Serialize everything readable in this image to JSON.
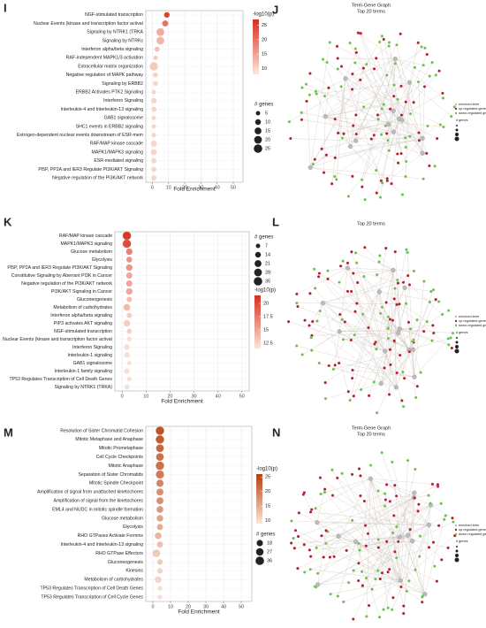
{
  "chart_data": [
    {
      "type": "dot",
      "label": "I",
      "categories": [
        "NGF-stimulated transcription",
        "Nuclear Events (kinase and transcription factor activat",
        "Signaling by NTRK1 (TRKA",
        "Signaling by NTRKs",
        "Interferon alpha/beta signaling",
        "RAF-independent MAPK1/3 activation",
        "Extracellular matrix organization",
        "Negative regulation of MAPK pathway",
        "Signaling by ERBB2",
        "ERBB2 Activates PTK2 Signaling",
        "Interferon Signaling",
        "Interleukin-4 and Interleukin-13 signaling",
        "GAB1 signalosome",
        "SHC1 events in ERBB2 signaling",
        "Estrogen-dependent nuclear events downstream of ESR-mem",
        "RAF/MAP kinase cascade",
        "MAPK1/MAPK3 signaling",
        "ESR-mediated signaling",
        "PI5P, PP2A and IER3 Regulate PI3K/AKT Signaling",
        "Negative regulation of the PI3K/AKT network"
      ],
      "values": [
        9,
        8,
        5,
        5,
        3,
        2,
        1,
        2,
        2,
        1,
        1,
        1,
        1,
        1,
        1,
        1,
        1,
        1,
        1,
        1
      ],
      "sizes": [
        10,
        12,
        22,
        22,
        8,
        6,
        25,
        8,
        7,
        5,
        9,
        8,
        5,
        5,
        6,
        12,
        12,
        8,
        8,
        8
      ],
      "neg_log10_p": [
        25,
        20,
        14,
        13,
        12,
        11,
        11,
        10,
        10,
        10,
        10,
        10,
        10,
        10,
        10,
        10,
        10,
        10,
        10,
        10
      ],
      "xlabel": "Fold Enrichment",
      "xlim": [
        -4,
        56
      ],
      "xticks": [
        0,
        10,
        20,
        30,
        40,
        50
      ],
      "grid": true,
      "colorbar": {
        "title": "-log10(p)",
        "lim": [
          8,
          27
        ],
        "ticks": [
          25,
          20,
          15,
          10
        ],
        "color_low": "#fbe7dc",
        "color_high": "#d7301f"
      },
      "size_legend": {
        "title": "# genes",
        "values": [
          5,
          10,
          15,
          20,
          25
        ]
      }
    },
    {
      "type": "dot",
      "label": "K",
      "categories": [
        "RAF/MAP kinase cascade",
        "MAPK1/MAPK3 signaling",
        "Glucose metabolism",
        "Glycolysis",
        "PI5P, PP2A and IER3 Regulate PI3K/AKT Signaling",
        "Constitutive Signaling by Aberrant PI3K in Cancer",
        "Negative regulation of the PI3K/AKT network",
        "PI3K/AKT Signaling in Cancer",
        "Gluconeogenesis",
        "Metabolism of carbohydrates",
        "Interferon alpha/beta signaling",
        "PIP3 activates AKT signaling",
        "NGF-stimulated transcription",
        "Nuclear Events (kinase and transcription factor activat",
        "Interferon Signaling",
        "Interleukin-1 signaling",
        "GAB1 signalosome",
        "Interleukin-1 family signaling",
        "TP53 Regulates Transcription of Cell Death Genes",
        "Signaling by NTRK1 (TRKA)"
      ],
      "values": [
        2,
        2,
        3,
        3,
        3,
        3,
        3,
        3,
        3,
        2,
        3,
        2,
        3,
        3,
        2,
        2,
        3,
        2,
        3,
        2
      ],
      "sizes": [
        35,
        35,
        20,
        15,
        20,
        18,
        18,
        20,
        12,
        22,
        12,
        20,
        10,
        10,
        15,
        14,
        7,
        14,
        8,
        10
      ],
      "neg_log10_p": [
        21,
        20,
        17,
        16,
        16,
        15,
        15,
        15,
        14,
        14,
        13,
        13,
        13,
        12,
        12,
        12,
        12,
        12,
        12,
        12
      ],
      "xlabel": "Fold Enrichment",
      "xlim": [
        -3,
        53
      ],
      "xticks": [
        0,
        10,
        20,
        30,
        40,
        50
      ],
      "grid": true,
      "colorbar": {
        "title": "-log10(p)",
        "lim": [
          11.5,
          21.5
        ],
        "ticks": [
          20.0,
          17.5,
          15.0,
          12.5
        ],
        "color_low": "#fbe7dc",
        "color_high": "#d7301f"
      },
      "size_legend": {
        "title": "# genes",
        "values": [
          7,
          14,
          21,
          28,
          35
        ]
      }
    },
    {
      "type": "dot",
      "label": "M",
      "categories": [
        "Resolution of Sister Chromatid Cohesion",
        "Mitotic Metaphase and Anaphase",
        "Mitotic Prometaphase",
        "Cell Cycle Checkpoints",
        "Mitotic Anaphase",
        "Separation of Sister Chromatids",
        "Mitotic Spindle Checkpoint",
        "Amplification  of signal from unattached  kinetochores",
        "Amplification  of signal from the kinetochores",
        "EML4 and NUDC in mitotic spindle formation",
        "Glucose metabolism",
        "Glycolysis",
        "RHO GTPases Activate Formins",
        "Interleukin-4 and Interleukin-13 signaling",
        "RHO GTPase Effectors",
        "Gluconeogenesis",
        "Kinesins",
        "Metabolism of carbohydrates",
        "TP53 Regulates Transcription of Cell Death Genes",
        "TP53 Regulates Transcription of Cell Cycle Genes"
      ],
      "values": [
        4,
        4,
        4,
        4,
        4,
        4,
        4,
        4,
        4,
        4,
        4,
        4,
        3,
        4,
        2,
        4,
        4,
        3,
        4,
        4
      ],
      "sizes": [
        36,
        36,
        30,
        30,
        36,
        34,
        26,
        24,
        24,
        22,
        20,
        18,
        22,
        18,
        30,
        14,
        14,
        22,
        10,
        10
      ],
      "neg_log10_p": [
        24,
        23,
        22,
        21,
        21,
        20,
        19,
        18,
        18,
        17,
        16,
        15,
        14,
        13,
        12,
        12,
        11,
        11,
        10,
        10
      ],
      "xlabel": "Fold Enrichment",
      "xlim": [
        -4,
        56
      ],
      "xticks": [
        0,
        10,
        20,
        30,
        40,
        50
      ],
      "grid": true,
      "colorbar": {
        "title": "-log10(p)",
        "lim": [
          9,
          26
        ],
        "ticks": [
          25,
          20,
          15,
          10
        ],
        "color_low": "#fbe7dc",
        "color_high": "#b5400f"
      },
      "size_legend": {
        "title": "# genes",
        "values": [
          18,
          27,
          36
        ]
      }
    }
  ],
  "networks": [
    {
      "label": "J",
      "title": "Term-Gene Graph",
      "subtitle": "Top 20 terms",
      "legend": [
        "enriched term",
        "up-regulated gene",
        "down-regulated gene"
      ],
      "size_title": "# genes"
    },
    {
      "label": "L",
      "subtitle": "Top 20 terms",
      "legend": [
        "enriched term",
        "up-regulated gene",
        "down-regulated gene"
      ],
      "size_title": "# genes"
    },
    {
      "label": "N",
      "title": "Term-Gene Graph",
      "subtitle": "Top 20 terms",
      "legend": [
        "enriched term",
        "up-regulated gene",
        "down-regulated gene"
      ],
      "size_title": "# genes"
    }
  ]
}
